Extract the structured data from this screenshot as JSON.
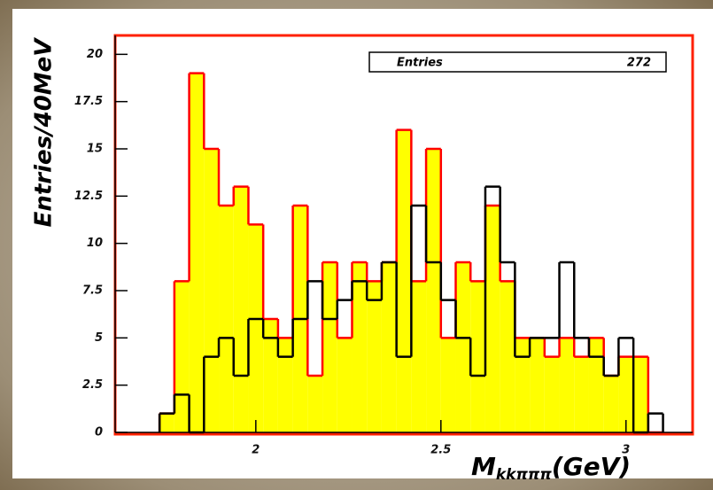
{
  "chart_data": {
    "type": "histogram",
    "ylabel": "Entries/40MeV",
    "xlabel": "M",
    "xlabel_sub": "kkπππ",
    "xlabel_unit": "(GeV)",
    "stats": {
      "label": "Entries",
      "value": 272
    },
    "bins": [
      1.74,
      1.78,
      1.82,
      1.86,
      1.9,
      1.94,
      1.98,
      2.02,
      2.06,
      2.1,
      2.14,
      2.18,
      2.22,
      2.26,
      2.3,
      2.34,
      2.38,
      2.42,
      2.46,
      2.5,
      2.54,
      2.58,
      2.62,
      2.66,
      2.7,
      2.74,
      2.78,
      2.82,
      2.86,
      2.9,
      2.94,
      2.98,
      3.02,
      3.06,
      3.1
    ],
    "series": [
      {
        "color": "#ff0000",
        "fill": "#ffff00",
        "values": [
          1,
          8,
          19,
          15,
          12,
          13,
          11,
          6,
          5,
          12,
          3,
          9,
          5,
          9,
          8,
          9,
          16,
          8,
          15,
          5,
          9,
          8,
          12,
          8,
          5,
          5,
          4,
          5,
          4,
          5,
          3,
          4,
          4,
          0
        ]
      },
      {
        "color": "#000000",
        "fill": null,
        "values": [
          1,
          2,
          0,
          4,
          5,
          3,
          6,
          5,
          4,
          6,
          8,
          6,
          7,
          8,
          7,
          9,
          4,
          12,
          9,
          7,
          5,
          3,
          13,
          9,
          4,
          5,
          5,
          9,
          5,
          4,
          3,
          5,
          0,
          1
        ]
      }
    ],
    "xlim": [
      1.62,
      3.18
    ],
    "ylim": [
      0,
      21
    ],
    "xticks": [
      2,
      2.5,
      3
    ],
    "yticks": [
      0,
      2.5,
      5,
      7.5,
      10,
      12.5,
      15,
      17.5,
      20
    ]
  }
}
